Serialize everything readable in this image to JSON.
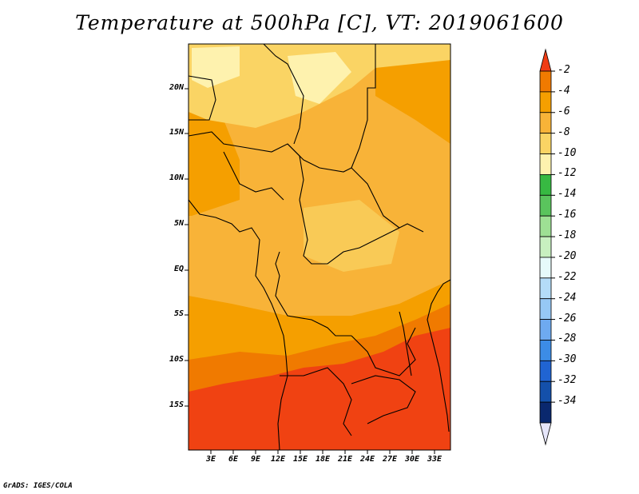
{
  "title": "Temperature at 500hPa [C], VT: 2019061600",
  "credit": "GrADS: IGES/COLA",
  "lat_labels": [
    "20N",
    "15N",
    "10N",
    "5N",
    "EQ",
    "5S",
    "10S",
    "15S"
  ],
  "lon_labels": [
    "3E",
    "6E",
    "9E",
    "12E",
    "15E",
    "18E",
    "21E",
    "24E",
    "27E",
    "30E",
    "33E"
  ],
  "colorbar": {
    "labels": [
      "-2",
      "-4",
      "-6",
      "-8",
      "-10",
      "-12",
      "-14",
      "-16",
      "-18",
      "-20",
      "-22",
      "-24",
      "-26",
      "-28",
      "-30",
      "-32",
      "-34"
    ],
    "colors": [
      "#f03c14",
      "#f07a00",
      "#f59f00",
      "#f8b338",
      "#fad464",
      "#fef2ae",
      "#37b942",
      "#5ac45d",
      "#9ee094",
      "#c8f0c0",
      "#e6fafa",
      "#b4dcf8",
      "#96c8f5",
      "#6eaaf0",
      "#3c8ce6",
      "#2064d2",
      "#1450aa",
      "#0a286e",
      "#e6e6fa"
    ]
  },
  "colors": {
    "hot": "#f03c14",
    "warm": "#f07a00",
    "mid": "#f59f00",
    "cool": "#f8b338",
    "pale": "#fad464",
    "palest": "#fef2ae"
  }
}
